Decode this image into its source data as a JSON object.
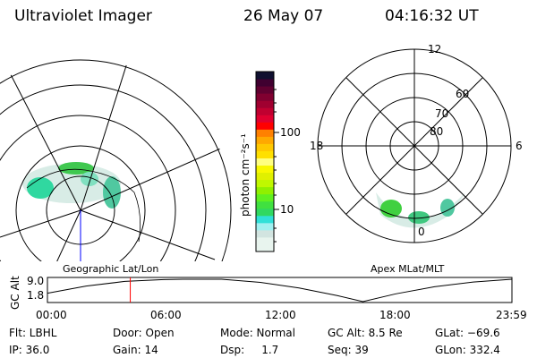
{
  "header": {
    "instrument": "Ultraviolet Imager",
    "date": "26 May 07",
    "time": "04:16:32 UT"
  },
  "left_map": {
    "label": "Geographic Lat/Lon"
  },
  "right_map": {
    "label": "Apex MLat/MLT",
    "mlt_labels": [
      "12",
      "18",
      "6",
      "0"
    ],
    "lat_labels": [
      "80",
      "70",
      "60"
    ]
  },
  "colorbar": {
    "unit_label": "photon cm⁻²s⁻¹",
    "ticks": [
      "100",
      "10"
    ],
    "colors": [
      "#e8f4ee",
      "#e8f4ee",
      "#d2e4e0",
      "#a0f0f0",
      "#30e0d8",
      "#30d860",
      "#40e040",
      "#60f020",
      "#90f000",
      "#c0f800",
      "#e0f000",
      "#f8f800",
      "#ffff80",
      "#ffe000",
      "#ffc800",
      "#ffa800",
      "#ff8000",
      "#ff0000",
      "#e00030",
      "#c00030",
      "#a00030",
      "#800030",
      "#600030",
      "#400030",
      "#101030"
    ]
  },
  "chart_data": {
    "type": "line",
    "ylabel": "GC Alt",
    "yticks": [
      "9.0",
      "1.8"
    ],
    "ylim": [
      1.8,
      9.0
    ],
    "xticks": [
      "00:00",
      "06:00",
      "12:00",
      "18:00",
      "23:59"
    ],
    "xlim": [
      0,
      24
    ],
    "current_time_hours": 4.28,
    "x": [
      0,
      2,
      4,
      6,
      7,
      9,
      11,
      13,
      15,
      16.3,
      18,
      20,
      22,
      24
    ],
    "y": [
      4.5,
      6.8,
      8.3,
      8.9,
      9.0,
      9.0,
      8.0,
      6.2,
      3.7,
      1.8,
      4.3,
      6.6,
      8.1,
      9.0
    ]
  },
  "info": {
    "filter": "Flt: LBHL",
    "ip": "IP: 36.0",
    "door": "Door: Open",
    "gain": "Gain: 14",
    "mode": "Mode: Normal",
    "dsp": "Dsp:     1.7",
    "gcalt": "GC Alt: 8.5 Re",
    "seq": "Seq: 39",
    "glat": "GLat: −69.6",
    "glon": "GLon: 332.4"
  }
}
